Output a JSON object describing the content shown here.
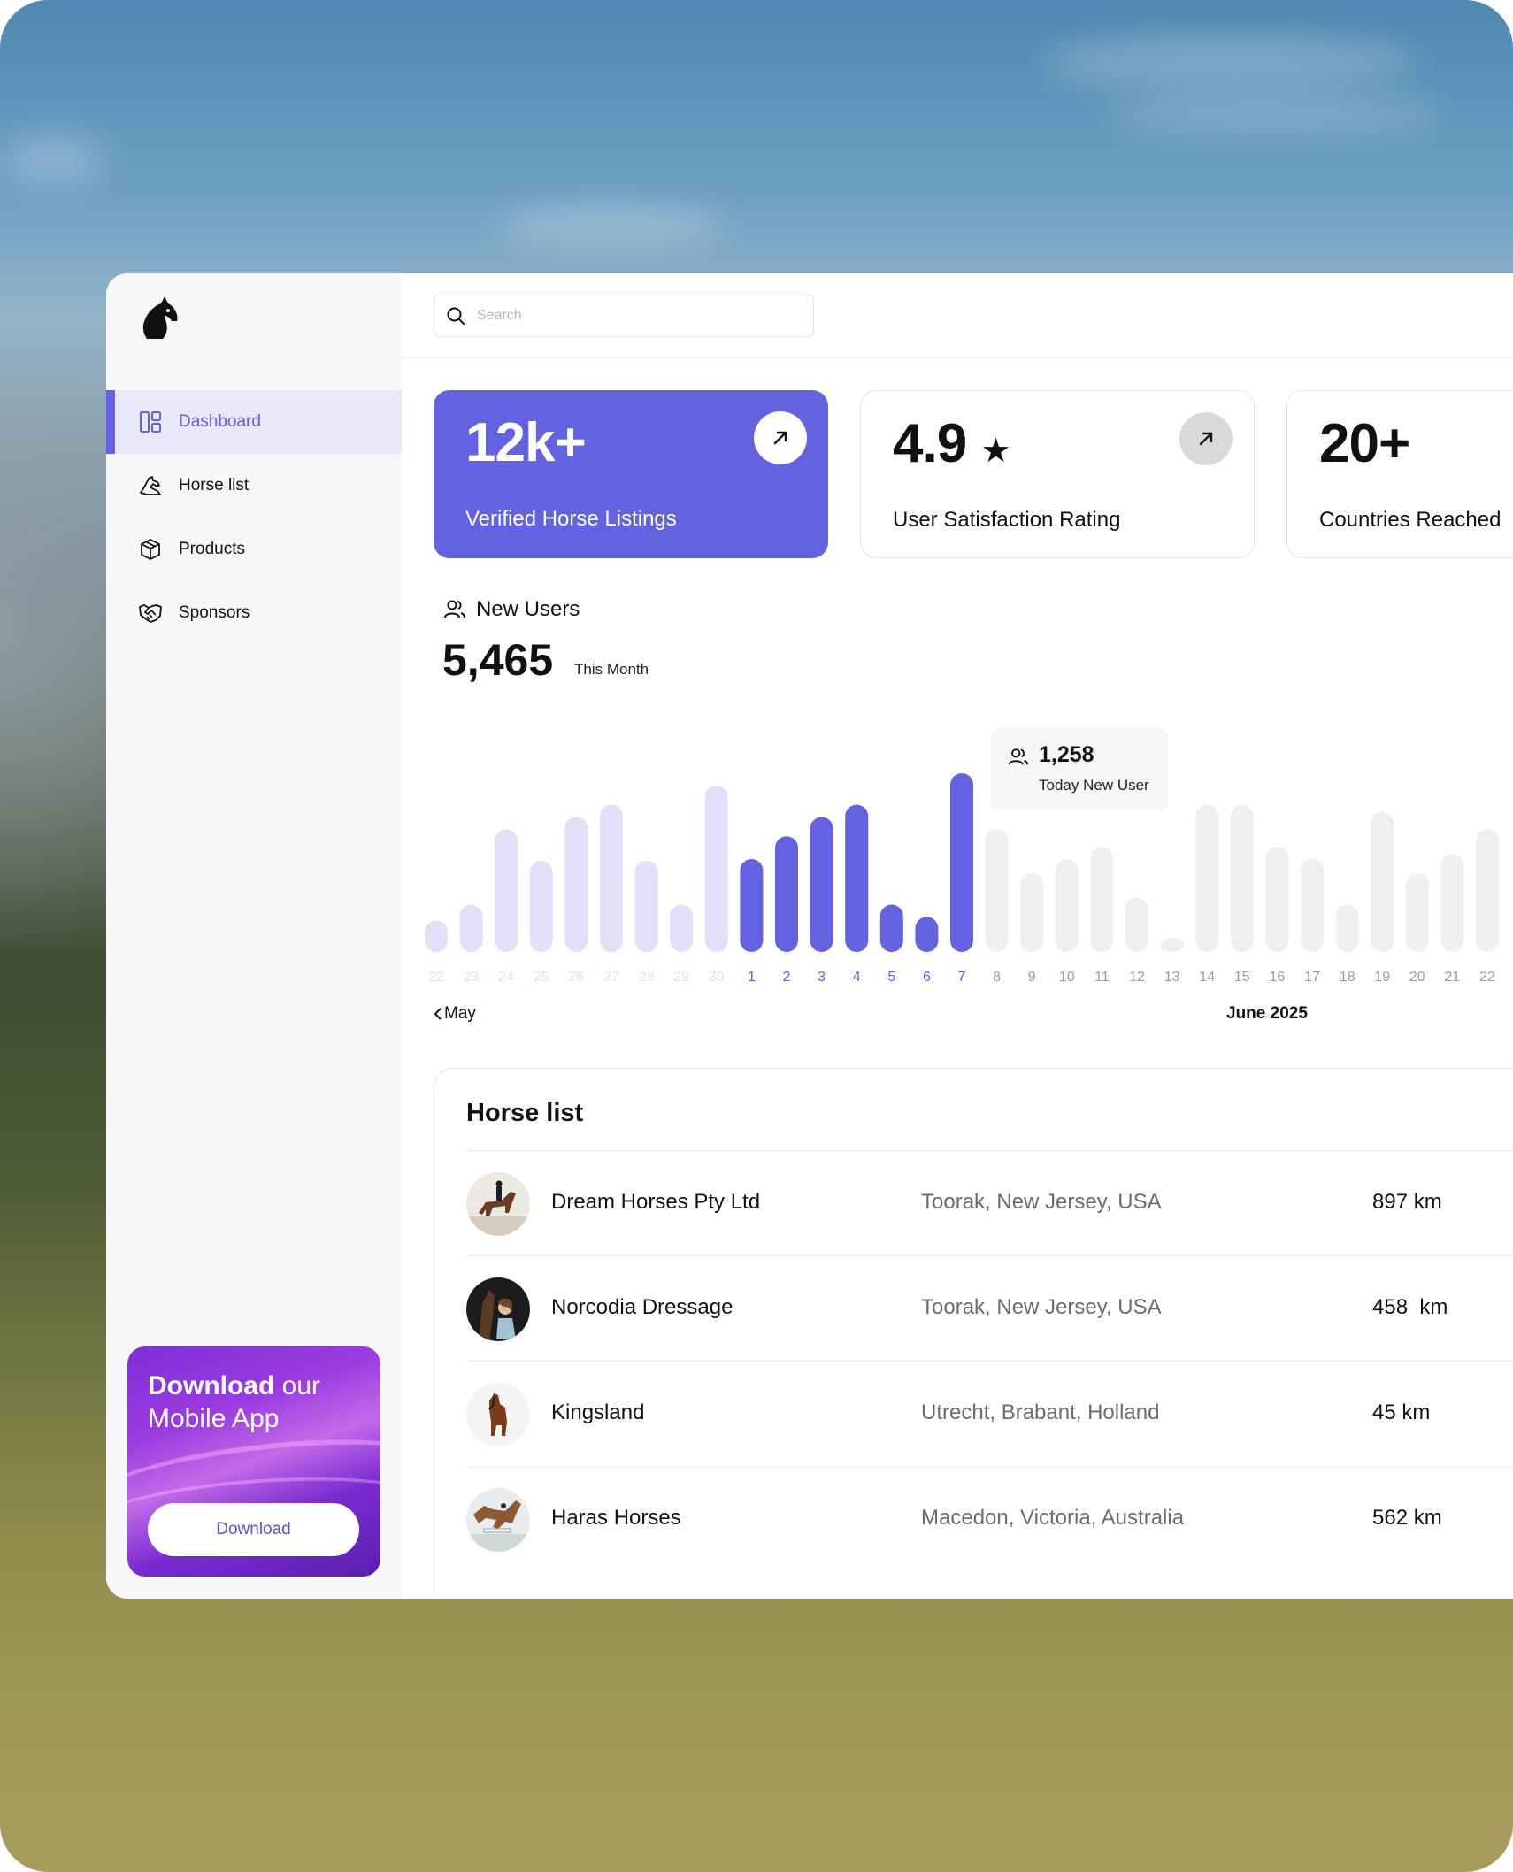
{
  "sidebar": {
    "items": [
      {
        "label": "Dashboard",
        "icon": "dashboard-icon",
        "active": true
      },
      {
        "label": "Horse list",
        "icon": "horse-icon",
        "active": false
      },
      {
        "label": "Products",
        "icon": "box-icon",
        "active": false
      },
      {
        "label": "Sponsors",
        "icon": "handshake-icon",
        "active": false
      }
    ],
    "promo": {
      "title_bold": "Download",
      "title_rest": " our",
      "title_line2": "Mobile App",
      "button_label": "Download"
    }
  },
  "search": {
    "placeholder": "Search",
    "value": ""
  },
  "stats": [
    {
      "value": "12k+",
      "label": "Verified Horse Listings",
      "style": "primary"
    },
    {
      "value": "4.9",
      "suffix": "★",
      "label": "User Satisfaction Rating",
      "style": "outline"
    },
    {
      "value": "20+",
      "label": "Countries Reached",
      "style": "outline"
    }
  ],
  "new_users": {
    "title": "New Users",
    "value": "5,465",
    "period": "This Month"
  },
  "tooltip": {
    "value": "1,258",
    "label": "Today New User"
  },
  "chart_data": {
    "type": "bar",
    "categories": [
      "22",
      "23",
      "24",
      "25",
      "26",
      "27",
      "28",
      "29",
      "30",
      "1",
      "2",
      "3",
      "4",
      "5",
      "6",
      "7",
      "8",
      "9",
      "10",
      "11",
      "12",
      "13",
      "14",
      "15",
      "16",
      "17",
      "18",
      "19",
      "20",
      "21",
      "22"
    ],
    "values": [
      18,
      27,
      70,
      52,
      77,
      84,
      52,
      27,
      95,
      53,
      66,
      77,
      84,
      27,
      20,
      102,
      70,
      45,
      53,
      60,
      31,
      8,
      84,
      84,
      60,
      53,
      27,
      80,
      45,
      56,
      70
    ],
    "highlight_index": 15,
    "colors": {
      "past": "#e1e0f8",
      "current": "#6363e1",
      "future": "#efeff1",
      "label_past": "#e1e0f8",
      "label_current": "#5f5fe0",
      "label_future": "#9a9aa2"
    },
    "prev_month": "May",
    "current_month": "June 2025"
  },
  "horse_list": {
    "title": "Horse list",
    "rows": [
      {
        "name": "Dream Horses Pty Ltd",
        "location": "Toorak, New Jersey, USA",
        "distance": "897 km"
      },
      {
        "name": "Norcodia Dressage",
        "location": "Toorak, New Jersey, USA",
        "distance": "458  km"
      },
      {
        "name": "Kingsland",
        "location": "Utrecht, Brabant, Holland",
        "distance": "45 km"
      },
      {
        "name": "Haras Horses",
        "location": "Macedon, Victoria, Australia",
        "distance": "562 km"
      }
    ]
  },
  "colors": {
    "accent": "#6363e1"
  }
}
